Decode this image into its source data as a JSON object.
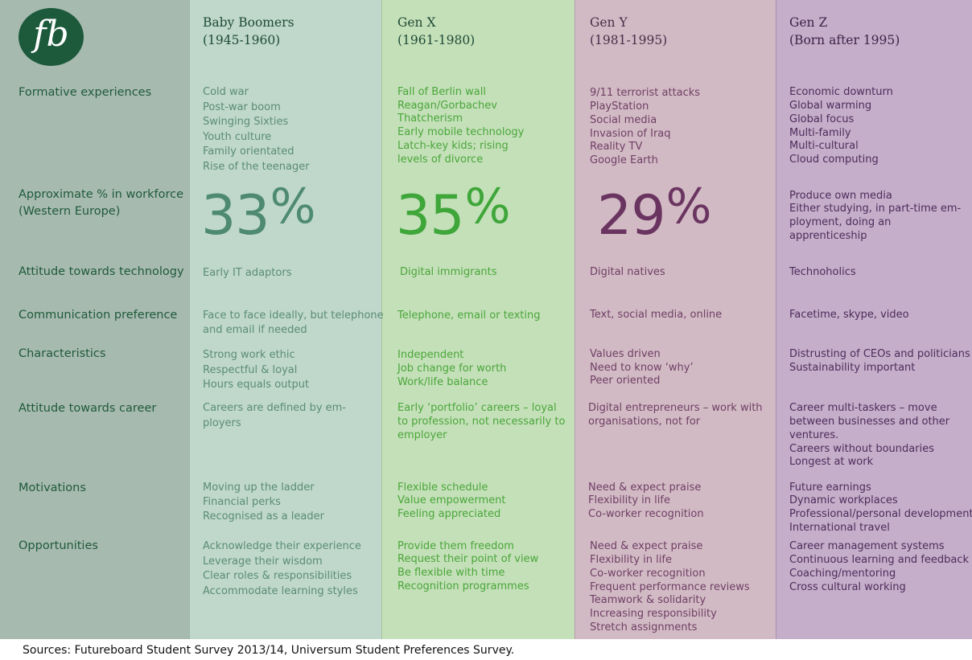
{
  "logo_text": "fb",
  "rows": {
    "formative": "Formative experiences",
    "workforce": [
      "Approximate % in workforce",
      "(Western Europe)"
    ],
    "tech": "Attitude towards technology",
    "comm": "Communication preference",
    "characteristics": "Characteristics",
    "career": "Attitude towards career",
    "motivations": "Motivations",
    "opportunities": "Opportunities"
  },
  "generations": [
    {
      "name": "Baby Boomers",
      "years": "(1945-1960)",
      "formative": [
        "Cold war",
        "Post-war boom",
        "Swinging Sixties",
        "Youth culture",
        "Family orientated",
        "Rise of the teenager"
      ],
      "workforce_pct": 0.33,
      "workforce_number": "33",
      "workforce_symbol": "%",
      "tech": "Early IT adaptors",
      "comm": [
        "Face to face ideally, but telephone",
        "and email if needed"
      ],
      "characteristics": [
        "Strong work ethic",
        "Respectful & loyal",
        "Hours equals output"
      ],
      "career": [
        "Careers are defined by em-",
        "ployers"
      ],
      "motivations": [
        "Moving up the ladder",
        "Financial perks",
        "Recognised as a leader"
      ],
      "opportunities": [
        "Acknowledge their experience",
        "Leverage their wisdom",
        "Clear roles & responsibilities",
        "Accommodate learning styles"
      ]
    },
    {
      "name": "Gen X",
      "years": "(1961-1980)",
      "formative": [
        "Fall of Berlin wall",
        "Reagan/Gorbachev",
        "Thatcherism",
        "Early mobile technology",
        "Latch-key kids; rising",
        "levels of divorce"
      ],
      "workforce_pct": 0.35,
      "workforce_number": "35",
      "workforce_symbol": "%",
      "tech": "Digital immigrants",
      "comm": [
        "Telephone, email or texting"
      ],
      "characteristics": [
        "Independent",
        "Job change for worth",
        "Work/life balance"
      ],
      "career": [
        "Early ‘portfolio’ careers – loyal",
        "to profession, not necessarily to",
        "employer"
      ],
      "motivations": [
        "Flexible schedule",
        "Value empowerment",
        "Feeling appreciated"
      ],
      "opportunities": [
        "Provide them freedom",
        "Request their point of view",
        "Be flexible with time",
        "Recognition programmes"
      ]
    },
    {
      "name": "Gen Y",
      "years": "(1981-1995)",
      "formative": [
        "9/11 terrorist attacks",
        "PlayStation",
        "Social media",
        "Invasion of Iraq",
        "Reality TV",
        "Google Earth"
      ],
      "workforce_pct": 0.29,
      "workforce_number": "29",
      "workforce_symbol": "%",
      "tech": "Digital natives",
      "comm": [
        "Text, social media, online"
      ],
      "characteristics": [
        "Values driven",
        "Need to know ‘why’",
        "Peer oriented"
      ],
      "career": [
        "Digital entrepreneurs – work with",
        "organisations, not for"
      ],
      "motivations": [
        "Need & expect praise",
        "Flexibility in life",
        "Co-worker recognition"
      ],
      "opportunities": [
        "Need & expect praise",
        "Flexibility in life",
        "Co-worker recognition",
        "Frequent performance reviews",
        "Teamwork & solidarity",
        "Increasing responsibility",
        "Stretch assignments"
      ]
    },
    {
      "name": "Gen Z",
      "years": "(Born after 1995)",
      "formative": [
        "Economic downturn",
        "Global warming",
        "Global focus",
        "Multi-family",
        "Multi-cultural",
        "Cloud computing"
      ],
      "workforce_text": [
        "Produce own media",
        "Either studying, in part-time em-",
        "ployment, doing an",
        "apprenticeship"
      ],
      "tech": "Technoholics",
      "comm": [
        "Facetime, skype, video"
      ],
      "characteristics": [
        "Distrusting of CEOs and politicians",
        "Sustainability important"
      ],
      "career": [
        "Career multi-taskers – move",
        "between businesses and other",
        "ventures.",
        "Careers without boundaries",
        "Longest at work"
      ],
      "motivations": [
        "Future earnings",
        "Dynamic workplaces",
        "Professional/personal development",
        "International travel"
      ],
      "opportunities": [
        "Career management systems",
        "Continuous learning and feedback",
        "Coaching/mentoring",
        "Cross cultural working"
      ]
    }
  ],
  "colors": {
    "boomers_text": "#5b8c74",
    "boomers_big": "#4e8a71",
    "genx_text": "#4aa63a",
    "genx_big": "#3fa63a",
    "geny_text": "#6e3f63",
    "geny_big": "#6a3460",
    "genz_text": "#4e2c5c",
    "label_text": "#1f5a3a"
  },
  "sources": "Sources: Futureboard Student Survey 2013/14, Universum Student Preferences Survey."
}
